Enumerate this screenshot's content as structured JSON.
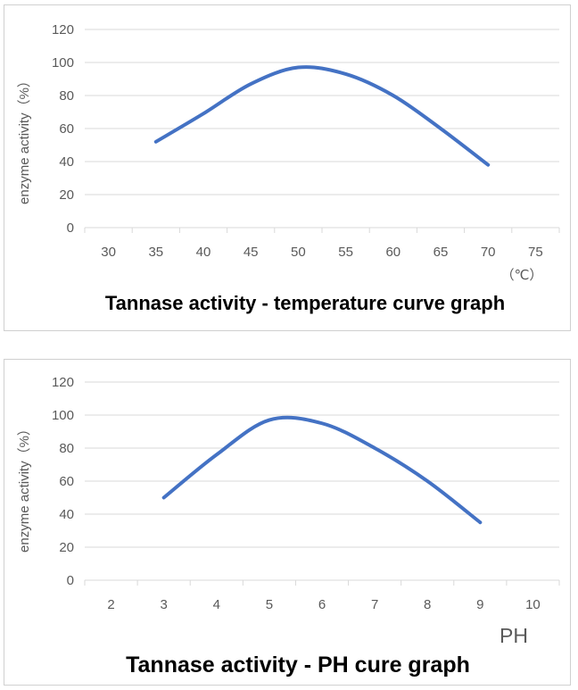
{
  "chart_data": [
    {
      "type": "line",
      "title": "Tannase activity - temperature curve graph",
      "ylabel": "enzyme activity（%）",
      "xunit": "（℃）",
      "categories": [
        "30",
        "35",
        "40",
        "45",
        "50",
        "55",
        "60",
        "65",
        "70",
        "75"
      ],
      "x": [
        35,
        40,
        45,
        50,
        55,
        60,
        65,
        70
      ],
      "values": [
        52,
        69,
        87,
        97,
        93,
        80,
        60,
        38
      ],
      "ylim": [
        0,
        120
      ],
      "yticks": [
        "0",
        "20",
        "40",
        "60",
        "80",
        "100",
        "120"
      ],
      "grid": true,
      "line_color": "#4472c4"
    },
    {
      "type": "line",
      "title": "Tannase activity - PH cure graph",
      "ylabel": "enzyme activity（%）",
      "xunit": "PH",
      "categories": [
        "2",
        "3",
        "4",
        "5",
        "6",
        "7",
        "8",
        "9",
        "10"
      ],
      "x": [
        3,
        4,
        5,
        6,
        7,
        8,
        9
      ],
      "values": [
        50,
        76,
        97,
        95,
        80,
        60,
        35
      ],
      "ylim": [
        0,
        120
      ],
      "yticks": [
        "0",
        "20",
        "40",
        "60",
        "80",
        "100",
        "120"
      ],
      "grid": true,
      "line_color": "#4472c4"
    }
  ]
}
